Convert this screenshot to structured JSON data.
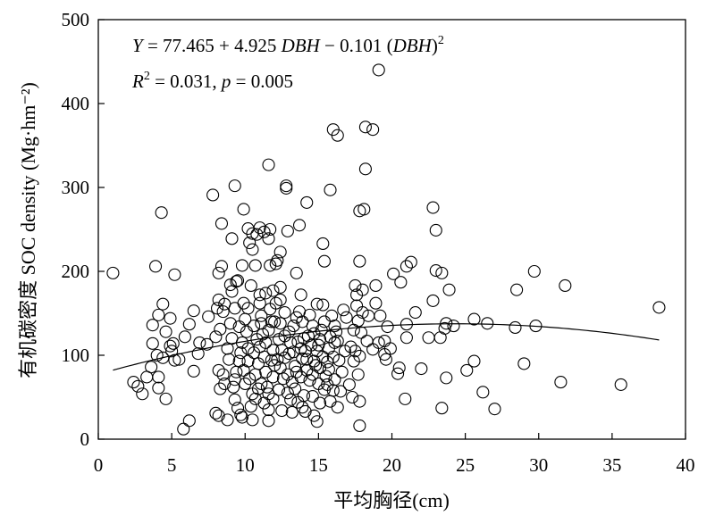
{
  "chart_data": {
    "type": "scatter",
    "xlabel": "平均胸径(cm)",
    "ylabel": "有机碳密度 SOC density (Mg·hm⁻²)",
    "xlim": [
      0,
      40
    ],
    "ylim": [
      0,
      500
    ],
    "xticks": [
      0,
      5,
      10,
      15,
      20,
      25,
      30,
      35,
      40
    ],
    "yticks": [
      0,
      100,
      200,
      300,
      400,
      500
    ],
    "grid": false,
    "marker": "open-circle",
    "colors": {
      "marker": "#000000",
      "curve": "#000000",
      "axis": "#000000"
    },
    "points": [
      [
        1.0,
        198
      ],
      [
        2.4,
        68
      ],
      [
        2.7,
        63
      ],
      [
        3.0,
        54
      ],
      [
        3.3,
        74
      ],
      [
        3.6,
        86
      ],
      [
        3.7,
        136
      ],
      [
        3.7,
        114
      ],
      [
        3.9,
        206
      ],
      [
        4.0,
        100
      ],
      [
        4.1,
        74
      ],
      [
        4.1,
        148
      ],
      [
        4.1,
        61
      ],
      [
        4.3,
        270
      ],
      [
        4.4,
        161
      ],
      [
        4.4,
        97
      ],
      [
        4.6,
        128
      ],
      [
        4.6,
        48
      ],
      [
        4.9,
        144
      ],
      [
        4.9,
        111
      ],
      [
        5.0,
        105
      ],
      [
        5.1,
        114
      ],
      [
        5.2,
        196
      ],
      [
        5.2,
        94
      ],
      [
        5.5,
        95
      ],
      [
        5.8,
        12
      ],
      [
        5.9,
        122
      ],
      [
        6.2,
        22
      ],
      [
        6.2,
        137
      ],
      [
        6.5,
        153
      ],
      [
        6.5,
        81
      ],
      [
        6.8,
        102
      ],
      [
        6.9,
        115
      ],
      [
        7.4,
        113
      ],
      [
        7.5,
        146
      ],
      [
        7.8,
        291
      ],
      [
        8.0,
        122
      ],
      [
        8.0,
        31
      ],
      [
        8.1,
        156
      ],
      [
        8.2,
        198
      ],
      [
        8.2,
        166
      ],
      [
        8.2,
        82
      ],
      [
        8.2,
        28
      ],
      [
        8.3,
        131
      ],
      [
        8.3,
        60
      ],
      [
        8.4,
        257
      ],
      [
        8.4,
        206
      ],
      [
        8.5,
        152
      ],
      [
        8.5,
        77
      ],
      [
        8.6,
        161
      ],
      [
        8.6,
        66
      ],
      [
        8.8,
        108
      ],
      [
        8.8,
        23
      ],
      [
        8.9,
        95
      ],
      [
        9.0,
        184
      ],
      [
        9.0,
        138
      ],
      [
        9.1,
        239
      ],
      [
        9.1,
        176
      ],
      [
        9.1,
        120
      ],
      [
        9.2,
        62
      ],
      [
        9.3,
        302
      ],
      [
        9.3,
        156
      ],
      [
        9.3,
        71
      ],
      [
        9.3,
        47
      ],
      [
        9.4,
        188
      ],
      [
        9.4,
        80
      ],
      [
        9.5,
        189
      ],
      [
        9.5,
        37
      ],
      [
        9.6,
        134
      ],
      [
        9.6,
        93
      ],
      [
        9.7,
        103
      ],
      [
        9.7,
        29
      ],
      [
        9.8,
        207
      ],
      [
        9.8,
        115
      ],
      [
        9.8,
        26
      ],
      [
        9.9,
        274
      ],
      [
        9.9,
        162
      ],
      [
        9.9,
        82
      ],
      [
        10.0,
        143
      ],
      [
        10.0,
        66
      ],
      [
        10.1,
        128
      ],
      [
        10.2,
        251
      ],
      [
        10.2,
        156
      ],
      [
        10.2,
        108
      ],
      [
        10.2,
        93
      ],
      [
        10.3,
        234
      ],
      [
        10.3,
        72
      ],
      [
        10.4,
        183
      ],
      [
        10.4,
        39
      ],
      [
        10.5,
        245
      ],
      [
        10.5,
        226
      ],
      [
        10.5,
        54
      ],
      [
        10.5,
        23
      ],
      [
        10.6,
        103
      ],
      [
        10.6,
        135
      ],
      [
        10.7,
        207
      ],
      [
        10.7,
        77
      ],
      [
        10.7,
        48
      ],
      [
        10.8,
        244
      ],
      [
        10.8,
        119
      ],
      [
        10.9,
        60
      ],
      [
        10.9,
        90
      ],
      [
        11.0,
        252
      ],
      [
        11.0,
        172
      ],
      [
        11.0,
        162
      ],
      [
        11.0,
        110
      ],
      [
        11.1,
        138
      ],
      [
        11.1,
        147
      ],
      [
        11.1,
        66
      ],
      [
        11.2,
        125
      ],
      [
        11.3,
        247
      ],
      [
        11.3,
        98
      ],
      [
        11.3,
        43
      ],
      [
        11.4,
        174
      ],
      [
        11.4,
        115
      ],
      [
        11.4,
        80
      ],
      [
        11.5,
        62
      ],
      [
        11.6,
        327
      ],
      [
        11.6,
        239
      ],
      [
        11.6,
        130
      ],
      [
        11.6,
        54
      ],
      [
        11.6,
        35
      ],
      [
        11.6,
        22
      ],
      [
        11.7,
        250
      ],
      [
        11.7,
        207
      ],
      [
        11.7,
        155
      ],
      [
        11.8,
        94
      ],
      [
        11.8,
        140
      ],
      [
        11.9,
        177
      ],
      [
        11.9,
        106
      ],
      [
        11.9,
        74
      ],
      [
        11.9,
        48
      ],
      [
        12.0,
        88
      ],
      [
        12.0,
        140
      ],
      [
        12.1,
        209
      ],
      [
        12.1,
        162
      ],
      [
        12.2,
        213
      ],
      [
        12.2,
        95
      ],
      [
        12.3,
        119
      ],
      [
        12.3,
        59
      ],
      [
        12.4,
        223
      ],
      [
        12.4,
        181
      ],
      [
        12.4,
        166
      ],
      [
        12.4,
        138
      ],
      [
        12.4,
        85
      ],
      [
        12.5,
        106
      ],
      [
        12.5,
        34
      ],
      [
        12.6,
        72
      ],
      [
        12.7,
        151
      ],
      [
        12.7,
        123
      ],
      [
        12.7,
        97
      ],
      [
        12.8,
        302
      ],
      [
        12.8,
        299
      ],
      [
        12.9,
        248
      ],
      [
        12.9,
        77
      ],
      [
        12.9,
        55
      ],
      [
        13.0,
        102
      ],
      [
        13.0,
        128
      ],
      [
        13.1,
        47
      ],
      [
        13.1,
        115
      ],
      [
        13.2,
        32
      ],
      [
        13.2,
        68
      ],
      [
        13.3,
        135
      ],
      [
        13.3,
        104
      ],
      [
        13.4,
        87
      ],
      [
        13.4,
        60
      ],
      [
        13.5,
        198
      ],
      [
        13.5,
        145
      ],
      [
        13.5,
        80
      ],
      [
        13.6,
        116
      ],
      [
        13.6,
        44
      ],
      [
        13.7,
        255
      ],
      [
        13.7,
        152
      ],
      [
        13.8,
        172
      ],
      [
        13.8,
        74
      ],
      [
        13.8,
        108
      ],
      [
        13.9,
        140
      ],
      [
        13.9,
        96
      ],
      [
        13.9,
        38
      ],
      [
        14.0,
        52
      ],
      [
        14.0,
        120
      ],
      [
        14.1,
        105
      ],
      [
        14.1,
        33
      ],
      [
        14.2,
        282
      ],
      [
        14.2,
        82
      ],
      [
        14.2,
        95
      ],
      [
        14.3,
        123
      ],
      [
        14.4,
        70
      ],
      [
        14.4,
        148
      ],
      [
        14.5,
        112
      ],
      [
        14.6,
        77
      ],
      [
        14.6,
        51
      ],
      [
        14.6,
        135
      ],
      [
        14.7,
        126
      ],
      [
        14.7,
        93
      ],
      [
        14.7,
        28
      ],
      [
        14.8,
        88
      ],
      [
        14.9,
        161
      ],
      [
        14.9,
        105
      ],
      [
        14.9,
        21
      ],
      [
        15.0,
        66
      ],
      [
        15.0,
        112
      ],
      [
        15.1,
        119
      ],
      [
        15.1,
        85
      ],
      [
        15.1,
        43
      ],
      [
        15.2,
        130
      ],
      [
        15.3,
        233
      ],
      [
        15.3,
        160
      ],
      [
        15.3,
        98
      ],
      [
        15.4,
        212
      ],
      [
        15.4,
        59
      ],
      [
        15.4,
        140
      ],
      [
        15.5,
        75
      ],
      [
        15.6,
        65
      ],
      [
        15.6,
        92
      ],
      [
        15.7,
        108
      ],
      [
        15.7,
        83
      ],
      [
        15.8,
        297
      ],
      [
        15.8,
        122
      ],
      [
        15.8,
        45
      ],
      [
        15.9,
        147
      ],
      [
        16.0,
        369
      ],
      [
        16.0,
        98
      ],
      [
        16.0,
        58
      ],
      [
        16.1,
        135
      ],
      [
        16.1,
        115
      ],
      [
        16.1,
        71
      ],
      [
        16.2,
        128
      ],
      [
        16.3,
        362
      ],
      [
        16.3,
        117
      ],
      [
        16.3,
        38
      ],
      [
        16.4,
        94
      ],
      [
        16.5,
        57
      ],
      [
        16.6,
        80
      ],
      [
        16.7,
        154
      ],
      [
        16.8,
        105
      ],
      [
        16.9,
        145
      ],
      [
        17.1,
        65
      ],
      [
        17.2,
        110
      ],
      [
        17.3,
        50
      ],
      [
        17.4,
        130
      ],
      [
        17.4,
        93
      ],
      [
        17.5,
        183
      ],
      [
        17.5,
        105
      ],
      [
        17.6,
        172
      ],
      [
        17.6,
        159
      ],
      [
        17.7,
        141
      ],
      [
        17.7,
        77
      ],
      [
        17.8,
        272
      ],
      [
        17.8,
        212
      ],
      [
        17.8,
        99
      ],
      [
        17.8,
        45
      ],
      [
        17.8,
        16
      ],
      [
        17.9,
        127
      ],
      [
        18.0,
        178
      ],
      [
        18.0,
        151
      ],
      [
        18.1,
        274
      ],
      [
        18.2,
        372
      ],
      [
        18.2,
        322
      ],
      [
        18.3,
        117
      ],
      [
        18.4,
        147
      ],
      [
        18.7,
        369
      ],
      [
        18.7,
        107
      ],
      [
        18.9,
        183
      ],
      [
        18.9,
        162
      ],
      [
        19.1,
        440
      ],
      [
        19.1,
        115
      ],
      [
        19.2,
        147
      ],
      [
        19.5,
        117
      ],
      [
        19.5,
        101
      ],
      [
        19.6,
        95
      ],
      [
        19.7,
        134
      ],
      [
        19.9,
        108
      ],
      [
        20.1,
        197
      ],
      [
        20.4,
        78
      ],
      [
        20.5,
        85
      ],
      [
        20.6,
        187
      ],
      [
        20.9,
        48
      ],
      [
        21.0,
        206
      ],
      [
        21.0,
        137
      ],
      [
        21.0,
        121
      ],
      [
        21.3,
        211
      ],
      [
        21.6,
        151
      ],
      [
        22.0,
        84
      ],
      [
        22.5,
        121
      ],
      [
        22.8,
        276
      ],
      [
        22.8,
        165
      ],
      [
        23.0,
        249
      ],
      [
        23.0,
        201
      ],
      [
        23.3,
        121
      ],
      [
        23.4,
        198
      ],
      [
        23.4,
        37
      ],
      [
        23.6,
        132
      ],
      [
        23.7,
        138
      ],
      [
        23.7,
        73
      ],
      [
        23.9,
        178
      ],
      [
        24.2,
        135
      ],
      [
        25.1,
        82
      ],
      [
        25.6,
        93
      ],
      [
        25.6,
        143
      ],
      [
        26.2,
        56
      ],
      [
        26.5,
        138
      ],
      [
        27.0,
        36
      ],
      [
        28.4,
        133
      ],
      [
        28.5,
        178
      ],
      [
        29.0,
        90
      ],
      [
        29.7,
        200
      ],
      [
        29.8,
        135
      ],
      [
        31.5,
        68
      ],
      [
        31.8,
        183
      ],
      [
        35.6,
        65
      ],
      [
        38.2,
        157
      ]
    ],
    "fit": {
      "model": "quadratic",
      "intercept": 77.465,
      "b1": 4.925,
      "b2": -0.101,
      "r2": 0.031,
      "p": 0.005,
      "x_range": [
        1.0,
        38.2
      ]
    },
    "annotations": {
      "equation": {
        "y": "Y",
        "part1": " = 77.465 + 4.925 ",
        "dbh1": "DBH",
        "part2": " − 0.101 (",
        "dbh2": "DBH",
        "part3": ")",
        "sup": "2"
      },
      "stats": {
        "r": "R",
        "sup": "2",
        "part1": " = 0.031, ",
        "p": "p",
        "part2": " = 0.005"
      }
    }
  }
}
